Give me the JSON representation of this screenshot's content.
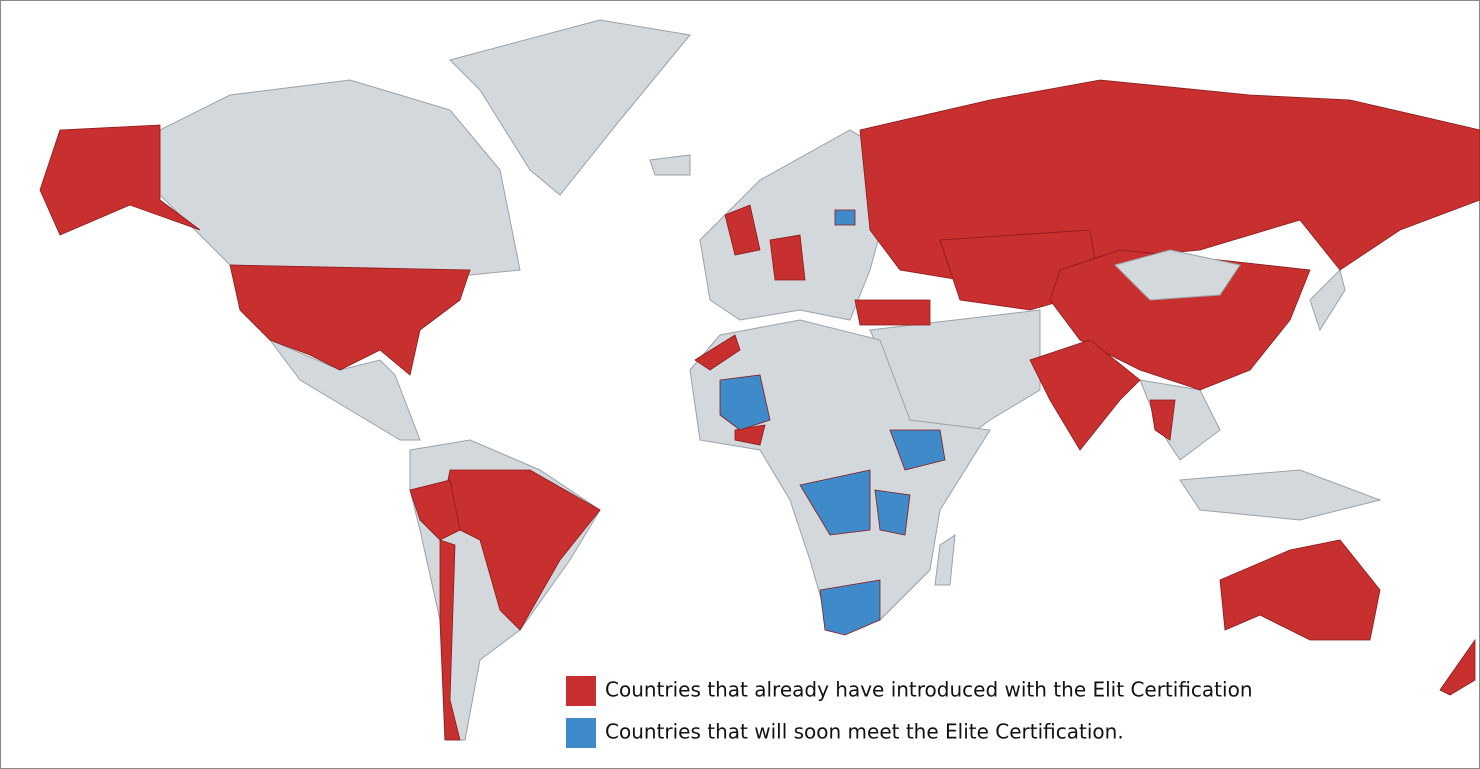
{
  "legend": {
    "items": [
      {
        "label": "Countries that already have introduced with the Elit Certification",
        "color": "#c8302f"
      },
      {
        "label": "Countries that will soon meet the Elite Certification.",
        "color": "#3f8ac8"
      }
    ]
  }
}
